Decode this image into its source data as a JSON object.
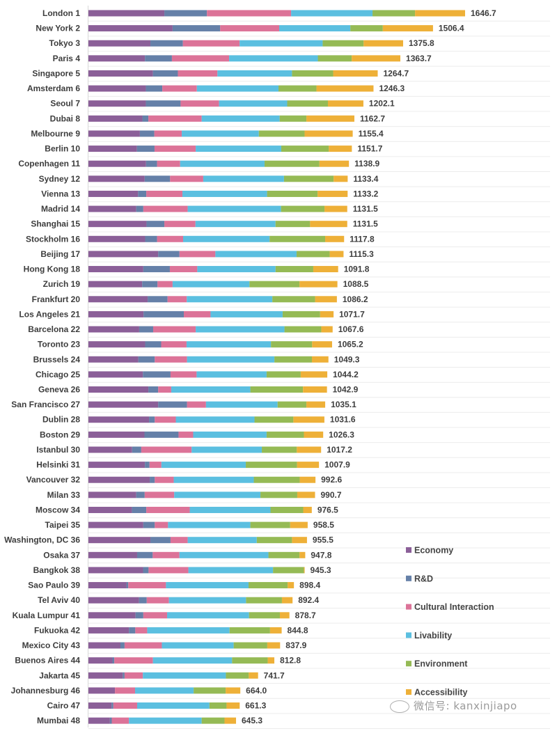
{
  "chart_data": {
    "type": "bar",
    "orientation": "horizontal-stacked",
    "title": "",
    "xlabel": "",
    "ylabel": "",
    "xlim": [
      0,
      1650
    ],
    "grid": true,
    "legend_position": "bottom-right",
    "series_names": [
      "Economy",
      "R&D",
      "Cultural Interaction",
      "Livability",
      "Environment",
      "Accessibility"
    ],
    "colors": {
      "Economy": "#8b5f98",
      "R&D": "#6580a8",
      "Cultural Interaction": "#dc7398",
      "Livability": "#5bbfe0",
      "Environment": "#95ba55",
      "Accessibility": "#eeb038"
    },
    "categories": [
      "London 1",
      "New York 2",
      "Tokyo 3",
      "Paris 4",
      "Singapore 5",
      "Amsterdam 6",
      "Seoul 7",
      "Dubai 8",
      "Melbourne 9",
      "Berlin 10",
      "Copenhagen 11",
      "Sydney 12",
      "Vienna 13",
      "Madrid 14",
      "Shanghai 15",
      "Stockholm 16",
      "Beijing 17",
      "Hong Kong 18",
      "Zurich 19",
      "Frankfurt 20",
      "Los Angeles 21",
      "Barcelona 22",
      "Toronto 23",
      "Brussels 24",
      "Chicago 25",
      "Geneva 26",
      "San Francisco 27",
      "Dublin 28",
      "Boston 29",
      "Istanbul 30",
      "Helsinki 31",
      "Vancouver 32",
      "Milan 33",
      "Moscow 34",
      "Taipei 35",
      "Washington, DC 36",
      "Osaka 37",
      "Bangkok 38",
      "Sao Paulo 39",
      "Tel Aviv 40",
      "Kuala Lumpur 41",
      "Fukuoka 42",
      "Mexico City 43",
      "Buenos Aires 44",
      "Jakarta 45",
      "Johannesburg 46",
      "Cairo 47",
      "Mumbai 48"
    ],
    "totals": [
      "1646.7",
      "1506.4",
      "1375.8",
      "1363.7",
      "1264.7",
      "1246.3",
      "1202.1",
      "1162.7",
      "1155.4",
      "1151.7",
      "1138.9",
      "1133.4",
      "1133.2",
      "1131.5",
      "1131.5",
      "1117.8",
      "1115.3",
      "1091.8",
      "1088.5",
      "1086.2",
      "1071.7",
      "1067.6",
      "1065.2",
      "1049.3",
      "1044.2",
      "1042.9",
      "1035.1",
      "1031.6",
      "1026.3",
      "1017.2",
      "1007.9",
      "992.6",
      "990.7",
      "976.5",
      "958.5",
      "955.5",
      "947.8",
      "945.3",
      "898.4",
      "892.4",
      "878.7",
      "844.8",
      "837.9",
      "812.8",
      "741.7",
      "664.0",
      "661.3",
      "645.3"
    ],
    "series": [
      {
        "name": "Economy",
        "values": [
          332,
          368,
          271,
          247,
          282,
          251,
          251,
          236,
          225,
          212,
          252,
          246,
          217,
          209,
          254,
          248,
          305,
          240,
          235,
          259,
          241,
          222,
          248,
          218,
          238,
          262,
          305,
          265,
          245,
          191,
          247,
          268,
          209,
          190,
          240,
          271,
          213,
          239,
          166,
          221,
          206,
          177,
          140,
          105,
          150,
          116,
          101,
          94
        ]
      },
      {
        "name": "R&D",
        "values": [
          186,
          208,
          142,
          118,
          109,
          72,
          152,
          26,
          63,
          77,
          48,
          111,
          36,
          31,
          78,
          52,
          93,
          116,
          67,
          87,
          176,
          61,
          70,
          72,
          121,
          43,
          126,
          25,
          149,
          40,
          20,
          22,
          37,
          63,
          50,
          88,
          68,
          24,
          8,
          34,
          34,
          28,
          18,
          8,
          8,
          0,
          8,
          8
        ]
      },
      {
        "name": "Cultural Interaction",
        "values": [
          368,
          258,
          248,
          250,
          173,
          151,
          168,
          233,
          120,
          180,
          101,
          145,
          158,
          194,
          136,
          114,
          157,
          120,
          66,
          84,
          117,
          186,
          111,
          141,
          114,
          57,
          83,
          92,
          64,
          220,
          52,
          83,
          129,
          190,
          58,
          75,
          117,
          174,
          165,
          97,
          104,
          52,
          163,
          169,
          80,
          88,
          104,
          75
        ]
      },
      {
        "name": "Livability",
        "values": [
          356,
          311,
          363,
          388,
          326,
          357,
          298,
          341,
          337,
          374,
          369,
          353,
          370,
          408,
          350,
          378,
          355,
          342,
          336,
          374,
          315,
          388,
          369,
          382,
          306,
          346,
          313,
          344,
          321,
          307,
          369,
          350,
          377,
          353,
          360,
          302,
          389,
          370,
          361,
          337,
          358,
          360,
          314,
          346,
          363,
          256,
          316,
          318
        ]
      },
      {
        "name": "Environment",
        "values": [
          186,
          142,
          179,
          148,
          180,
          166,
          178,
          117,
          200,
          208,
          240,
          217,
          221,
          190,
          151,
          243,
          145,
          165,
          219,
          187,
          164,
          161,
          180,
          164,
          149,
          230,
          126,
          170,
          163,
          153,
          224,
          201,
          161,
          143,
          174,
          154,
          136,
          135,
          171,
          157,
          135,
          177,
          147,
          156,
          100,
          140,
          75,
          100
        ]
      },
      {
        "name": "Accessibility",
        "values": [
          218.7,
          219.4,
          172.8,
          212.7,
          194.7,
          249.3,
          155.1,
          209.7,
          210.4,
          100.7,
          128.9,
          61.4,
          131.2,
          99.5,
          162.5,
          82.8,
          60.3,
          108.8,
          165.5,
          95.2,
          58.7,
          49.6,
          87.2,
          72.3,
          116.2,
          104.9,
          82.1,
          135.6,
          84.3,
          106.2,
          95.9,
          68.6,
          77.7,
          37.5,
          76.5,
          65.5,
          24.8,
          3.3,
          27.4,
          46.4,
          41.7,
          50.8,
          55.9,
          28.8,
          40.7,
          64.0,
          57.3,
          50.3
        ]
      }
    ]
  },
  "watermark": {
    "text": "微信号: kanxinjiapo"
  }
}
